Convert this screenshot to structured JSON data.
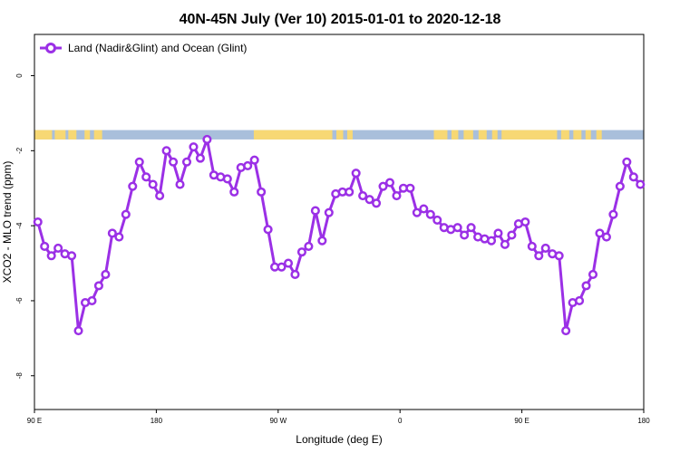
{
  "chart_data": {
    "type": "line",
    "title": "40N-45N July (Ver 10)   2015-01-01 to 2020-12-18",
    "xlabel": "Longitude (deg E)",
    "ylabel": "XCO2 - MLO trend (ppm)",
    "x_tick_labels": [
      "90 E",
      "180",
      "90 W",
      "0",
      "90 E",
      "180"
    ],
    "x_tick_values": [
      90,
      180,
      270,
      360,
      450,
      540
    ],
    "xlim": [
      90,
      540
    ],
    "y_tick_labels": [
      "0",
      "-2",
      "-4",
      "-6",
      "-8"
    ],
    "y_tick_values": [
      0,
      -2,
      -4,
      -6,
      -8
    ],
    "ylim": [
      -8.9,
      1.1
    ],
    "legend_position": "top-left",
    "grid": false,
    "land_ocean_band": {
      "y_range": [
        -1.7,
        -1.45
      ],
      "land_color": "#f7d874",
      "ocean_color": "#a9bfdb"
    },
    "series": [
      {
        "name": "Land (Nadir&Glint) and Ocean (Glint)",
        "color": "#9b30e6",
        "x": [
          92.5,
          97.5,
          102.5,
          107.5,
          112.5,
          117.5,
          122.5,
          127.5,
          132.5,
          137.5,
          142.5,
          147.5,
          152.5,
          157.5,
          162.5,
          167.5,
          172.5,
          177.5,
          182.5,
          187.5,
          192.5,
          197.5,
          202.5,
          207.5,
          212.5,
          217.5,
          222.5,
          227.5,
          232.5,
          237.5,
          242.5,
          247.5,
          252.5,
          257.5,
          262.5,
          267.5,
          272.5,
          277.5,
          282.5,
          287.5,
          292.5,
          297.5,
          302.5,
          307.5,
          312.5,
          317.5,
          322.5,
          327.5,
          332.5,
          337.5,
          342.5,
          347.5,
          352.5,
          357.5,
          362.5,
          367.5,
          372.5,
          377.5,
          382.5,
          387.5,
          392.5,
          397.5,
          402.5,
          407.5,
          412.5,
          417.5,
          422.5,
          427.5,
          432.5,
          437.5,
          442.5,
          447.5,
          452.5,
          457.5,
          462.5,
          467.5,
          472.5,
          477.5,
          482.5,
          487.5,
          492.5,
          497.5,
          502.5,
          507.5,
          512.5,
          517.5,
          522.5,
          527.5,
          532.5,
          537.5
        ],
        "y": [
          -3.9,
          -4.55,
          -4.8,
          -4.6,
          -4.75,
          -4.8,
          -6.8,
          -6.05,
          -6.0,
          -5.6,
          -5.3,
          -4.2,
          -4.3,
          -3.7,
          -2.95,
          -2.3,
          -2.7,
          -2.9,
          -3.2,
          -2.0,
          -2.3,
          -2.9,
          -2.3,
          -1.9,
          -2.2,
          -1.7,
          -2.65,
          -2.7,
          -2.75,
          -3.1,
          -2.45,
          -2.4,
          -2.25,
          -3.1,
          -4.1,
          -5.1,
          -5.1,
          -5.0,
          -5.3,
          -4.7,
          -4.55,
          -3.6,
          -4.4,
          -3.65,
          -3.15,
          -3.1,
          -3.1,
          -2.6,
          -3.2,
          -3.3,
          -3.4,
          -2.95,
          -2.85,
          -3.2,
          -3.0,
          -3.0,
          -3.65,
          -3.55,
          -3.7,
          -3.85,
          -4.05,
          -4.1,
          -4.05,
          -4.25,
          -4.05,
          -4.3,
          -4.35,
          -4.4,
          -4.2,
          -4.5,
          -4.25,
          -3.95,
          -3.9,
          -4.55,
          -4.8,
          -4.6,
          -4.75,
          -4.8,
          -6.8,
          -6.05,
          -6.0,
          -5.6,
          -5.3,
          -4.2,
          -4.3,
          -3.7,
          -2.95,
          -2.3,
          -2.7,
          -2.9
        ]
      }
    ]
  }
}
